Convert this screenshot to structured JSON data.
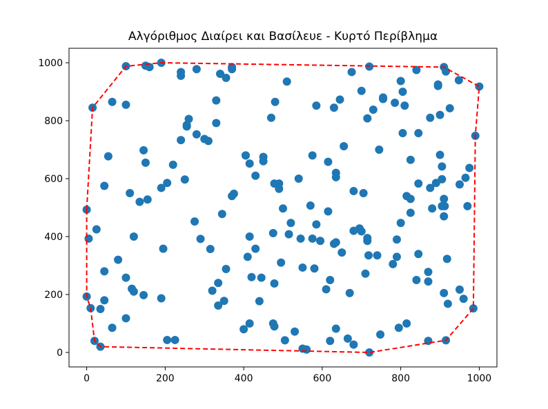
{
  "chart_data": {
    "type": "scatter",
    "title": "Αλγόριθμος Διαίρει και Βασίλευε - Κυρτό Περίβλημα",
    "xlabel": "",
    "ylabel": "",
    "xlim": [
      -45,
      1045
    ],
    "ylim": [
      -50,
      1050
    ],
    "xticks": [
      0,
      200,
      400,
      600,
      800,
      1000
    ],
    "yticks": [
      0,
      200,
      400,
      600,
      800,
      1000
    ],
    "grid": false,
    "point_color": "#1f77b4",
    "hull_color": "#ff0000",
    "points": [
      [
        100,
        988
      ],
      [
        150,
        990
      ],
      [
        160,
        985
      ],
      [
        190,
        1000
      ],
      [
        240,
        968
      ],
      [
        240,
        955
      ],
      [
        280,
        978
      ],
      [
        340,
        962
      ],
      [
        355,
        948
      ],
      [
        370,
        985
      ],
      [
        370,
        978
      ],
      [
        15,
        845
      ],
      [
        65,
        865
      ],
      [
        100,
        855
      ],
      [
        55,
        677
      ],
      [
        145,
        698
      ],
      [
        150,
        655
      ],
      [
        110,
        550
      ],
      [
        155,
        528
      ],
      [
        135,
        520
      ],
      [
        45,
        575
      ],
      [
        0,
        493
      ],
      [
        5,
        393
      ],
      [
        25,
        425
      ],
      [
        0,
        193
      ],
      [
        10,
        153
      ],
      [
        20,
        40
      ],
      [
        35,
        20
      ],
      [
        35,
        150
      ],
      [
        45,
        180
      ],
      [
        45,
        280
      ],
      [
        65,
        85
      ],
      [
        80,
        320
      ],
      [
        100,
        258
      ],
      [
        100,
        118
      ],
      [
        115,
        220
      ],
      [
        120,
        210
      ],
      [
        120,
        400
      ],
      [
        145,
        198
      ],
      [
        190,
        187
      ],
      [
        195,
        358
      ],
      [
        190,
        568
      ],
      [
        205,
        585
      ],
      [
        220,
        648
      ],
      [
        205,
        43
      ],
      [
        225,
        43
      ],
      [
        240,
        733
      ],
      [
        250,
        597
      ],
      [
        255,
        780
      ],
      [
        255,
        785
      ],
      [
        260,
        806
      ],
      [
        280,
        753
      ],
      [
        275,
        452
      ],
      [
        290,
        392
      ],
      [
        300,
        737
      ],
      [
        310,
        730
      ],
      [
        315,
        357
      ],
      [
        320,
        213
      ],
      [
        330,
        870
      ],
      [
        330,
        792
      ],
      [
        335,
        162
      ],
      [
        335,
        240
      ],
      [
        345,
        478
      ],
      [
        350,
        178
      ],
      [
        355,
        288
      ],
      [
        370,
        540
      ],
      [
        375,
        548
      ],
      [
        400,
        80
      ],
      [
        405,
        680
      ],
      [
        405,
        680
      ],
      [
        410,
        330
      ],
      [
        415,
        400
      ],
      [
        415,
        100
      ],
      [
        420,
        260
      ],
      [
        415,
        652
      ],
      [
        430,
        610
      ],
      [
        430,
        358
      ],
      [
        440,
        177
      ],
      [
        445,
        258
      ],
      [
        450,
        660
      ],
      [
        450,
        675
      ],
      [
        470,
        810
      ],
      [
        475,
        100
      ],
      [
        478,
        90
      ],
      [
        475,
        412
      ],
      [
        478,
        238
      ],
      [
        478,
        583
      ],
      [
        480,
        865
      ],
      [
        490,
        583
      ],
      [
        490,
        565
      ],
      [
        495,
        310
      ],
      [
        500,
        497
      ],
      [
        505,
        42
      ],
      [
        510,
        935
      ],
      [
        515,
        408
      ],
      [
        520,
        447
      ],
      [
        530,
        72
      ],
      [
        540,
        600
      ],
      [
        545,
        393
      ],
      [
        550,
        293
      ],
      [
        550,
        13
      ],
      [
        560,
        10
      ],
      [
        570,
        507
      ],
      [
        575,
        680
      ],
      [
        575,
        393
      ],
      [
        580,
        290
      ],
      [
        585,
        852
      ],
      [
        585,
        442
      ],
      [
        595,
        385
      ],
      [
        610,
        218
      ],
      [
        615,
        658
      ],
      [
        615,
        487
      ],
      [
        620,
        250
      ],
      [
        620,
        40
      ],
      [
        630,
        845
      ],
      [
        630,
        375
      ],
      [
        635,
        620
      ],
      [
        635,
        605
      ],
      [
        635,
        380
      ],
      [
        635,
        82
      ],
      [
        645,
        873
      ],
      [
        650,
        345
      ],
      [
        655,
        712
      ],
      [
        665,
        48
      ],
      [
        670,
        205
      ],
      [
        675,
        968
      ],
      [
        680,
        420
      ],
      [
        680,
        557
      ],
      [
        680,
        27
      ],
      [
        695,
        428
      ],
      [
        700,
        903
      ],
      [
        700,
        418
      ],
      [
        705,
        550
      ],
      [
        710,
        272
      ],
      [
        715,
        395
      ],
      [
        715,
        385
      ],
      [
        715,
        808
      ],
      [
        718,
        335
      ],
      [
        720,
        0
      ],
      [
        720,
        987
      ],
      [
        730,
        838
      ],
      [
        740,
        335
      ],
      [
        745,
        700
      ],
      [
        748,
        62
      ],
      [
        755,
        880
      ],
      [
        755,
        875
      ],
      [
        780,
        305
      ],
      [
        785,
        862
      ],
      [
        790,
        390
      ],
      [
        790,
        330
      ],
      [
        795,
        85
      ],
      [
        800,
        937
      ],
      [
        800,
        447
      ],
      [
        805,
        900
      ],
      [
        805,
        757
      ],
      [
        810,
        852
      ],
      [
        815,
        540
      ],
      [
        815,
        100
      ],
      [
        825,
        530
      ],
      [
        825,
        665
      ],
      [
        825,
        482
      ],
      [
        840,
        975
      ],
      [
        840,
        250
      ],
      [
        845,
        583
      ],
      [
        845,
        757
      ],
      [
        845,
        340
      ],
      [
        870,
        245
      ],
      [
        870,
        278
      ],
      [
        870,
        40
      ],
      [
        875,
        568
      ],
      [
        875,
        810
      ],
      [
        880,
        497
      ],
      [
        890,
        585
      ],
      [
        895,
        920
      ],
      [
        895,
        925
      ],
      [
        900,
        682
      ],
      [
        900,
        820
      ],
      [
        905,
        642
      ],
      [
        905,
        598
      ],
      [
        905,
        505
      ],
      [
        910,
        985
      ],
      [
        910,
        205
      ],
      [
        910,
        470
      ],
      [
        910,
        530
      ],
      [
        912,
        505
      ],
      [
        915,
        970
      ],
      [
        915,
        42
      ],
      [
        918,
        323
      ],
      [
        920,
        168
      ],
      [
        925,
        843
      ],
      [
        948,
        940
      ],
      [
        950,
        217
      ],
      [
        950,
        580
      ],
      [
        960,
        185
      ],
      [
        965,
        603
      ],
      [
        970,
        505
      ],
      [
        975,
        637
      ],
      [
        985,
        152
      ],
      [
        990,
        748
      ],
      [
        1000,
        918
      ]
    ],
    "hull": [
      [
        0,
        493
      ],
      [
        15,
        845
      ],
      [
        100,
        988
      ],
      [
        190,
        1000
      ],
      [
        910,
        985
      ],
      [
        1000,
        918
      ],
      [
        990,
        748
      ],
      [
        985,
        152
      ],
      [
        915,
        42
      ],
      [
        720,
        0
      ],
      [
        35,
        20
      ],
      [
        20,
        40
      ],
      [
        10,
        153
      ],
      [
        0,
        193
      ],
      [
        0,
        493
      ]
    ]
  }
}
